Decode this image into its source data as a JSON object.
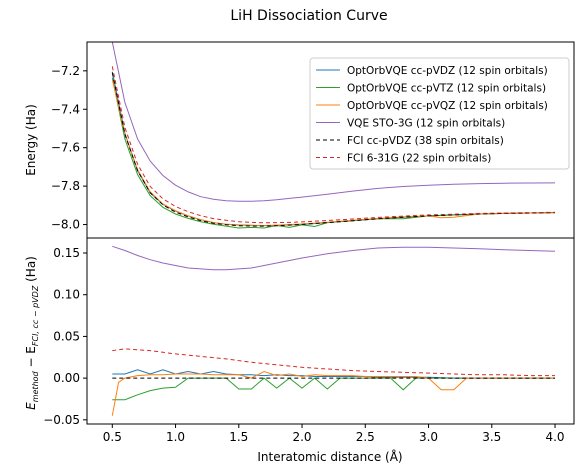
{
  "chart_data": {
    "type": "line",
    "title": "LiH Dissociation Curve",
    "xlabel": "Interatomic distance (Å)",
    "top": {
      "ylabel": "Energy (Ha)",
      "xlim": [
        0.3,
        4.15
      ],
      "ylim": [
        -8.07,
        -7.05
      ],
      "yticks": [
        -7.2,
        -7.4,
        -7.6,
        -7.8,
        -8.0
      ],
      "ytick_labels": [
        "−7.2",
        "−7.4",
        "−7.6",
        "−7.8",
        "−8.0"
      ],
      "legend_position": "top-right",
      "series": [
        {
          "name": "OptOrbVQE cc-pVDZ (12 spin orbitals)",
          "color": "#1f77b4",
          "dash": "",
          "x": [
            0.5,
            0.6,
            0.7,
            0.8,
            0.9,
            1.0,
            1.1,
            1.2,
            1.3,
            1.4,
            1.5,
            1.6,
            1.7,
            1.8,
            1.9,
            2.0,
            2.2,
            2.4,
            2.6,
            2.8,
            3.0,
            3.2,
            3.4,
            3.6,
            3.8,
            4.0
          ],
          "y": [
            -7.205,
            -7.525,
            -7.72,
            -7.835,
            -7.895,
            -7.93,
            -7.955,
            -7.975,
            -7.99,
            -7.998,
            -8.002,
            -8.004,
            -8.005,
            -8.004,
            -8.002,
            -8.0,
            -7.99,
            -7.98,
            -7.97,
            -7.962,
            -7.955,
            -7.95,
            -7.945,
            -7.942,
            -7.94,
            -7.938
          ]
        },
        {
          "name": "OptOrbVQE cc-pVTZ (12 spin orbitals)",
          "color": "#2ca02c",
          "dash": "",
          "x": [
            0.5,
            0.6,
            0.7,
            0.8,
            0.9,
            1.0,
            1.1,
            1.2,
            1.3,
            1.4,
            1.5,
            1.6,
            1.7,
            1.8,
            1.9,
            2.0,
            2.1,
            2.2,
            2.4,
            2.6,
            2.8,
            3.0,
            3.2,
            3.4,
            3.6,
            3.8,
            4.0
          ],
          "y": [
            -7.235,
            -7.555,
            -7.74,
            -7.85,
            -7.91,
            -7.945,
            -7.968,
            -7.985,
            -7.998,
            -8.008,
            -8.018,
            -8.015,
            -8.018,
            -8.005,
            -8.015,
            -8.002,
            -8.01,
            -7.99,
            -7.98,
            -7.97,
            -7.97,
            -7.955,
            -7.95,
            -7.945,
            -7.942,
            -7.94,
            -7.938
          ]
        },
        {
          "name": "OptOrbVQE cc-pVQZ (12 spin orbitals)",
          "color": "#ff7f0e",
          "dash": "",
          "x": [
            0.5,
            0.6,
            0.7,
            0.8,
            0.9,
            1.0,
            1.1,
            1.2,
            1.3,
            1.4,
            1.5,
            1.6,
            1.7,
            1.8,
            1.9,
            2.0,
            2.2,
            2.4,
            2.6,
            2.8,
            3.0,
            3.1,
            3.2,
            3.4,
            3.6,
            3.8,
            4.0
          ],
          "y": [
            -7.245,
            -7.53,
            -7.715,
            -7.83,
            -7.893,
            -7.928,
            -7.955,
            -7.975,
            -7.99,
            -7.998,
            -8.003,
            -8.005,
            -8.006,
            -8.003,
            -8.0,
            -7.997,
            -7.988,
            -7.978,
            -7.968,
            -7.96,
            -7.955,
            -7.965,
            -7.962,
            -7.945,
            -7.942,
            -7.94,
            -7.938
          ]
        },
        {
          "name": "VQE STO-3G (12 spin orbitals)",
          "color": "#9467bd",
          "dash": "",
          "x": [
            0.5,
            0.6,
            0.7,
            0.8,
            0.9,
            1.0,
            1.1,
            1.2,
            1.3,
            1.4,
            1.5,
            1.6,
            1.7,
            1.8,
            1.9,
            2.0,
            2.2,
            2.4,
            2.6,
            2.8,
            3.0,
            3.2,
            3.4,
            3.6,
            3.8,
            4.0
          ],
          "y": [
            -7.05,
            -7.365,
            -7.555,
            -7.67,
            -7.745,
            -7.795,
            -7.83,
            -7.855,
            -7.868,
            -7.876,
            -7.879,
            -7.879,
            -7.876,
            -7.871,
            -7.864,
            -7.857,
            -7.842,
            -7.826,
            -7.812,
            -7.802,
            -7.795,
            -7.79,
            -7.787,
            -7.785,
            -7.784,
            -7.783
          ]
        },
        {
          "name": "FCI cc-pVDZ (38 spin orbitals)",
          "color": "#000000",
          "dash": "4,3",
          "x": [
            0.5,
            0.6,
            0.7,
            0.8,
            0.9,
            1.0,
            1.1,
            1.2,
            1.3,
            1.4,
            1.5,
            1.6,
            1.7,
            1.8,
            1.9,
            2.0,
            2.2,
            2.4,
            2.6,
            2.8,
            3.0,
            3.2,
            3.4,
            3.6,
            3.8,
            4.0
          ],
          "y": [
            -7.21,
            -7.53,
            -7.72,
            -7.835,
            -7.897,
            -7.935,
            -7.96,
            -7.98,
            -7.993,
            -8.001,
            -8.006,
            -8.008,
            -8.008,
            -8.006,
            -8.003,
            -7.999,
            -7.99,
            -7.98,
            -7.97,
            -7.962,
            -7.955,
            -7.95,
            -7.945,
            -7.942,
            -7.94,
            -7.938
          ]
        },
        {
          "name": "FCI 6-31G (22 spin orbitals)",
          "color": "#d62728",
          "dash": "4,3",
          "x": [
            0.5,
            0.6,
            0.7,
            0.8,
            0.9,
            1.0,
            1.1,
            1.2,
            1.3,
            1.4,
            1.5,
            1.6,
            1.7,
            1.8,
            1.9,
            2.0,
            2.2,
            2.4,
            2.6,
            2.8,
            3.0,
            3.2,
            3.4,
            3.6,
            3.8,
            4.0
          ],
          "y": [
            -7.177,
            -7.495,
            -7.686,
            -7.802,
            -7.866,
            -7.906,
            -7.933,
            -7.954,
            -7.969,
            -7.978,
            -7.985,
            -7.989,
            -7.991,
            -7.99,
            -7.989,
            -7.986,
            -7.979,
            -7.971,
            -7.963,
            -7.956,
            -7.95,
            -7.946,
            -7.942,
            -7.94,
            -7.938,
            -7.936
          ]
        }
      ]
    },
    "bottom": {
      "ylabel_main": "E",
      "ylabel_sub1": "method",
      "ylabel_mid": " − E",
      "ylabel_sub2": "FCI, cc − pVDZ",
      "ylabel_unit": " (Ha)",
      "xlim": [
        0.3,
        4.15
      ],
      "ylim": [
        -0.055,
        0.168
      ],
      "yticks": [
        0.15,
        0.1,
        0.05,
        0.0,
        -0.05
      ],
      "ytick_labels": [
        "0.15",
        "0.10",
        "0.05",
        "0.00",
        "−0.05"
      ],
      "xticks": [
        0.5,
        1.0,
        1.5,
        2.0,
        2.5,
        3.0,
        3.5,
        4.0
      ],
      "xtick_labels": [
        "0.5",
        "1.0",
        "1.5",
        "2.0",
        "2.5",
        "3.0",
        "3.5",
        "4.0"
      ],
      "series": [
        {
          "name": "OptOrbVQE cc-pVDZ",
          "color": "#1f77b4",
          "dash": "",
          "x": [
            0.5,
            0.6,
            0.7,
            0.8,
            0.9,
            1.0,
            1.1,
            1.2,
            1.3,
            1.4,
            1.5,
            1.6,
            1.7,
            1.8,
            1.9,
            2.0,
            2.1,
            2.2,
            2.3,
            2.4,
            2.5,
            2.6,
            2.7,
            2.8,
            2.9,
            3.0,
            3.2,
            3.4,
            3.6,
            3.8,
            4.0
          ],
          "y": [
            0.005,
            0.005,
            0.01,
            0.005,
            0.01,
            0.005,
            0.008,
            0.005,
            0.008,
            0.005,
            0.004,
            0.004,
            0.003,
            0.004,
            0.003,
            0.003,
            0.002,
            0.002,
            0.002,
            0.002,
            0.002,
            0.001,
            0.001,
            0.001,
            0.001,
            0.001,
            0.0,
            0.0,
            0.0,
            0.0,
            0.0
          ]
        },
        {
          "name": "OptOrbVQE cc-pVTZ",
          "color": "#2ca02c",
          "dash": "",
          "x": [
            0.5,
            0.6,
            0.7,
            0.8,
            0.9,
            1.0,
            1.1,
            1.2,
            1.3,
            1.4,
            1.5,
            1.6,
            1.7,
            1.8,
            1.9,
            2.0,
            2.1,
            2.2,
            2.3,
            2.4,
            2.5,
            2.6,
            2.7,
            2.8,
            2.9,
            3.0,
            3.2,
            3.4,
            3.6,
            3.8,
            4.0
          ],
          "y": [
            -0.026,
            -0.026,
            -0.02,
            -0.015,
            -0.012,
            -0.011,
            0.0,
            0.0,
            0.0,
            0.0,
            -0.013,
            -0.013,
            0.0,
            -0.012,
            0.0,
            -0.012,
            0.0,
            -0.013,
            0.0,
            0.0,
            0.0,
            0.0,
            0.0,
            -0.014,
            0.0,
            0.0,
            0.0,
            0.0,
            0.0,
            0.0,
            0.0
          ]
        },
        {
          "name": "OptOrbVQE cc-pVQZ",
          "color": "#ff7f0e",
          "dash": "",
          "x": [
            0.5,
            0.55,
            0.6,
            0.7,
            0.8,
            0.9,
            1.0,
            1.1,
            1.2,
            1.3,
            1.4,
            1.5,
            1.6,
            1.7,
            1.8,
            1.9,
            2.0,
            2.1,
            2.2,
            2.3,
            2.4,
            2.5,
            2.6,
            2.7,
            2.8,
            2.9,
            3.0,
            3.1,
            3.2,
            3.3,
            3.4,
            3.6,
            3.8,
            4.0
          ],
          "y": [
            -0.045,
            -0.005,
            0.0,
            0.003,
            0.004,
            0.004,
            0.005,
            0.005,
            0.005,
            0.004,
            0.004,
            0.004,
            0.0,
            0.008,
            0.003,
            0.005,
            0.002,
            0.004,
            0.003,
            0.003,
            0.003,
            0.002,
            0.002,
            0.002,
            0.002,
            0.002,
            0.0,
            -0.014,
            -0.014,
            0.0,
            0.0,
            0.0,
            0.0,
            0.0
          ]
        },
        {
          "name": "VQE STO-3G",
          "color": "#9467bd",
          "dash": "",
          "x": [
            0.5,
            0.6,
            0.7,
            0.8,
            0.9,
            1.0,
            1.1,
            1.2,
            1.3,
            1.4,
            1.5,
            1.6,
            1.7,
            1.8,
            1.9,
            2.0,
            2.2,
            2.4,
            2.6,
            2.8,
            3.0,
            3.2,
            3.4,
            3.6,
            3.8,
            4.0
          ],
          "y": [
            0.158,
            0.153,
            0.147,
            0.142,
            0.138,
            0.135,
            0.132,
            0.131,
            0.13,
            0.13,
            0.131,
            0.132,
            0.135,
            0.138,
            0.141,
            0.144,
            0.149,
            0.153,
            0.156,
            0.157,
            0.157,
            0.156,
            0.155,
            0.154,
            0.153,
            0.152
          ]
        },
        {
          "name": "FCI cc-pVDZ",
          "color": "#000000",
          "dash": "4,3",
          "x": [
            0.5,
            4.0
          ],
          "y": [
            0.0,
            0.0
          ]
        },
        {
          "name": "FCI 6-31G",
          "color": "#d62728",
          "dash": "4,3",
          "x": [
            0.5,
            0.6,
            0.7,
            0.8,
            0.9,
            1.0,
            1.2,
            1.4,
            1.6,
            1.8,
            2.0,
            2.2,
            2.4,
            2.6,
            2.8,
            3.0,
            3.2,
            3.4,
            3.6,
            3.8,
            4.0
          ],
          "y": [
            0.033,
            0.035,
            0.034,
            0.033,
            0.031,
            0.029,
            0.026,
            0.023,
            0.019,
            0.016,
            0.013,
            0.011,
            0.009,
            0.008,
            0.007,
            0.006,
            0.005,
            0.004,
            0.004,
            0.003,
            0.003
          ]
        }
      ]
    }
  }
}
